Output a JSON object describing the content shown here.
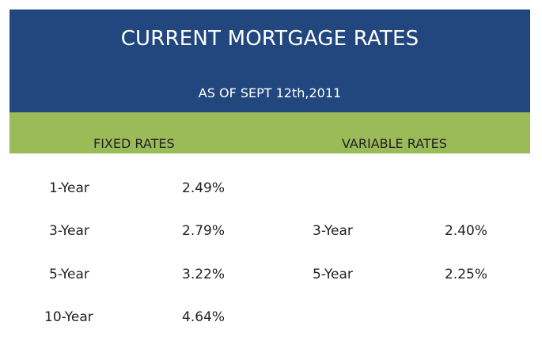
{
  "header": {
    "title": "CURRENT MORTGAGE RATES",
    "subtitle": "AS OF SEPT 12th,2011"
  },
  "columns": {
    "fixed_label": "FIXED RATES",
    "variable_label": "VARIABLE RATES"
  },
  "fixed_rates": [
    {
      "term": "1-Year",
      "rate": "2.49%"
    },
    {
      "term": "3-Year",
      "rate": "2.79%"
    },
    {
      "term": "5-Year",
      "rate": "3.22%"
    },
    {
      "term": "10-Year",
      "rate": "4.64%"
    }
  ],
  "variable_rates": [
    {
      "term": "3-Year",
      "rate": "2.40%"
    },
    {
      "term": "5-Year",
      "rate": "2.25%"
    }
  ],
  "colors": {
    "header_bg": "#22477e",
    "band_bg": "#9bbb59"
  }
}
